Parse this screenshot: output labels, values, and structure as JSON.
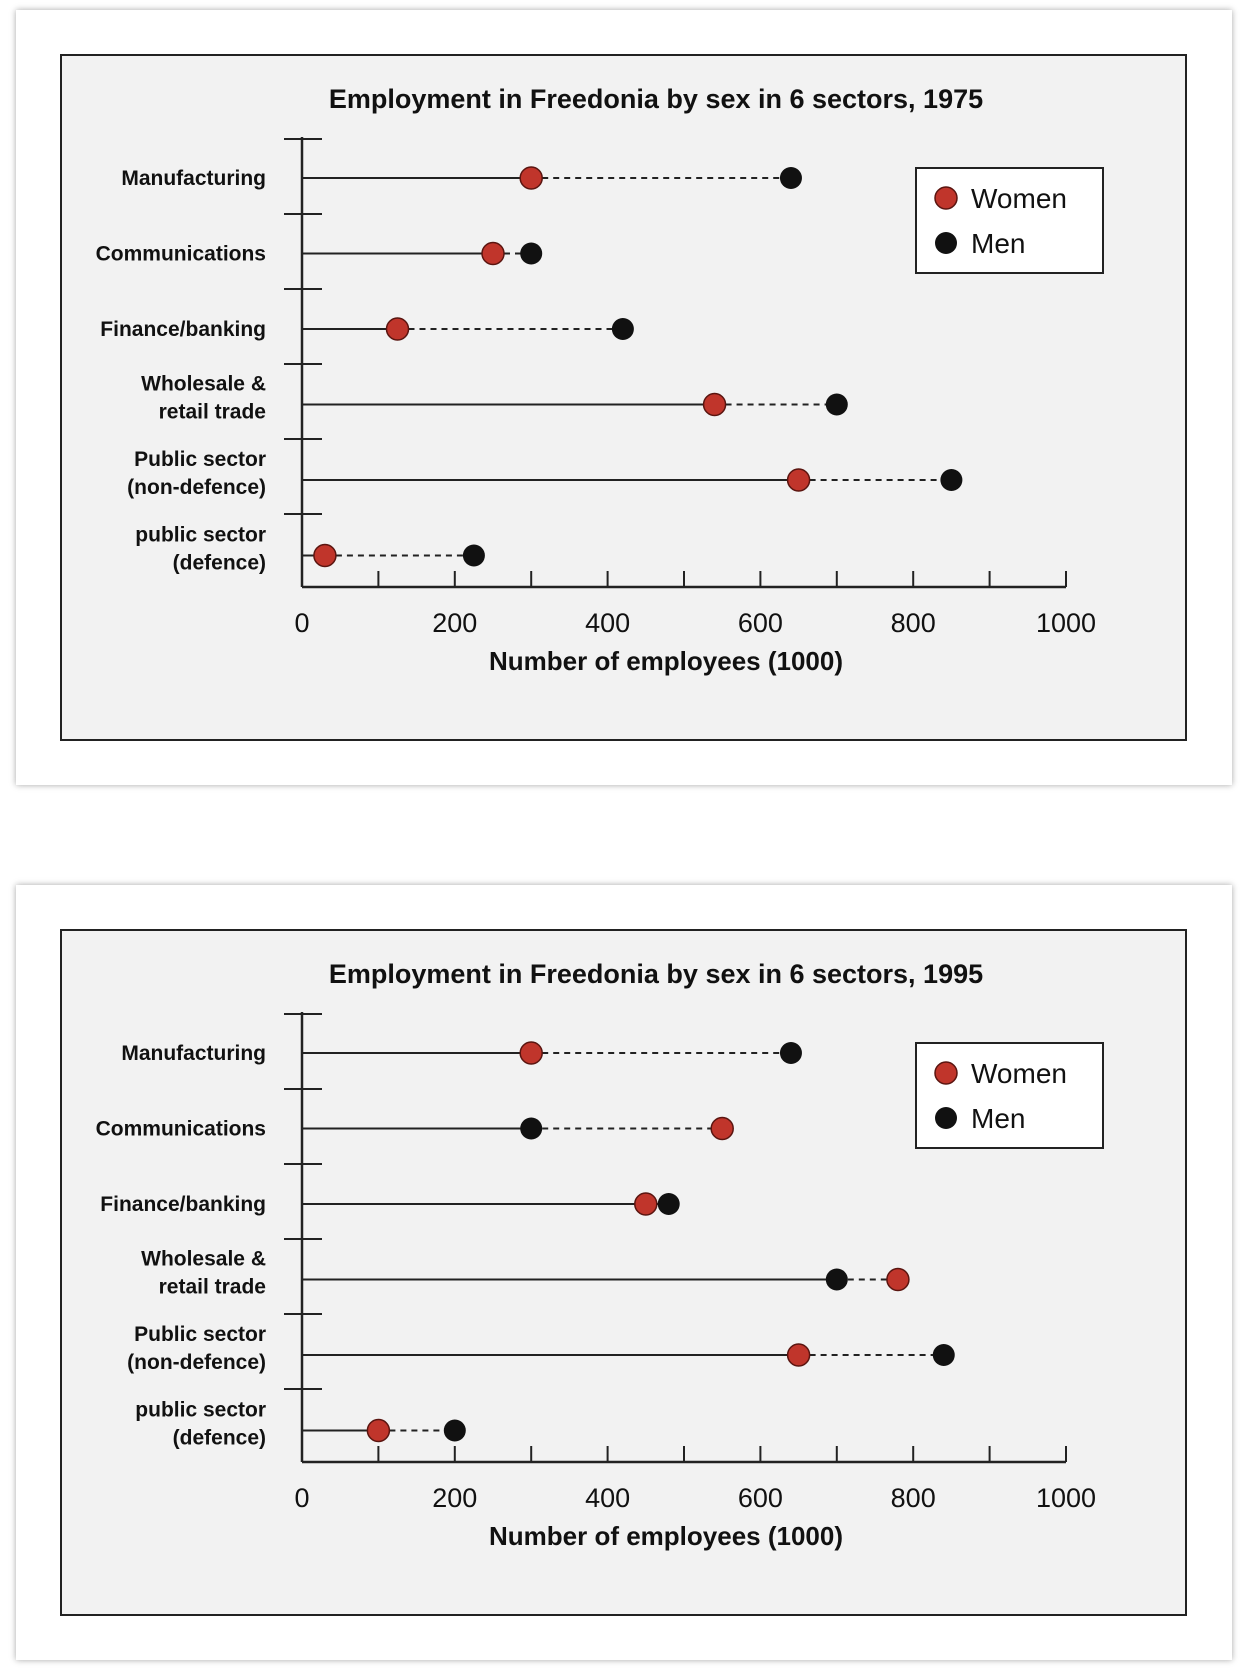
{
  "chart_data": [
    {
      "type": "dot",
      "title": "Employment in Freedonia by sex in 6 sectors, 1975",
      "xlabel": "Number of employees (1000)",
      "ylabel": "",
      "xlim": [
        0,
        1000
      ],
      "xticks": [
        "0",
        "200",
        "400",
        "600",
        "800",
        "1000"
      ],
      "categories": [
        [
          "Manufacturing"
        ],
        [
          "Communications"
        ],
        [
          "Finance/banking"
        ],
        [
          "Wholesale &",
          "retail trade"
        ],
        [
          "Public sector",
          "(non-defence)"
        ],
        [
          "public sector",
          "(defence)"
        ]
      ],
      "series": [
        {
          "name": "Women",
          "color": "#c0352b",
          "values": [
            300,
            250,
            125,
            540,
            650,
            30
          ]
        },
        {
          "name": "Men",
          "color": "#111111",
          "values": [
            640,
            300,
            420,
            700,
            850,
            225
          ]
        }
      ],
      "legend": {
        "position": "top-right",
        "labels": [
          "Women",
          "Men"
        ]
      }
    },
    {
      "type": "dot",
      "title": "Employment in Freedonia by sex in 6 sectors, 1995",
      "xlabel": "Number of employees (1000)",
      "ylabel": "",
      "xlim": [
        0,
        1000
      ],
      "xticks": [
        "0",
        "200",
        "400",
        "600",
        "800",
        "1000"
      ],
      "categories": [
        [
          "Manufacturing"
        ],
        [
          "Communications"
        ],
        [
          "Finance/banking"
        ],
        [
          "Wholesale &",
          "retail trade"
        ],
        [
          "Public sector",
          "(non-defence)"
        ],
        [
          "public sector",
          "(defence)"
        ]
      ],
      "series": [
        {
          "name": "Women",
          "color": "#c0352b",
          "values": [
            300,
            550,
            450,
            780,
            650,
            100
          ]
        },
        {
          "name": "Men",
          "color": "#111111",
          "values": [
            640,
            300,
            480,
            700,
            840,
            200
          ]
        }
      ],
      "legend": {
        "position": "top-right",
        "labels": [
          "Women",
          "Men"
        ]
      }
    }
  ]
}
